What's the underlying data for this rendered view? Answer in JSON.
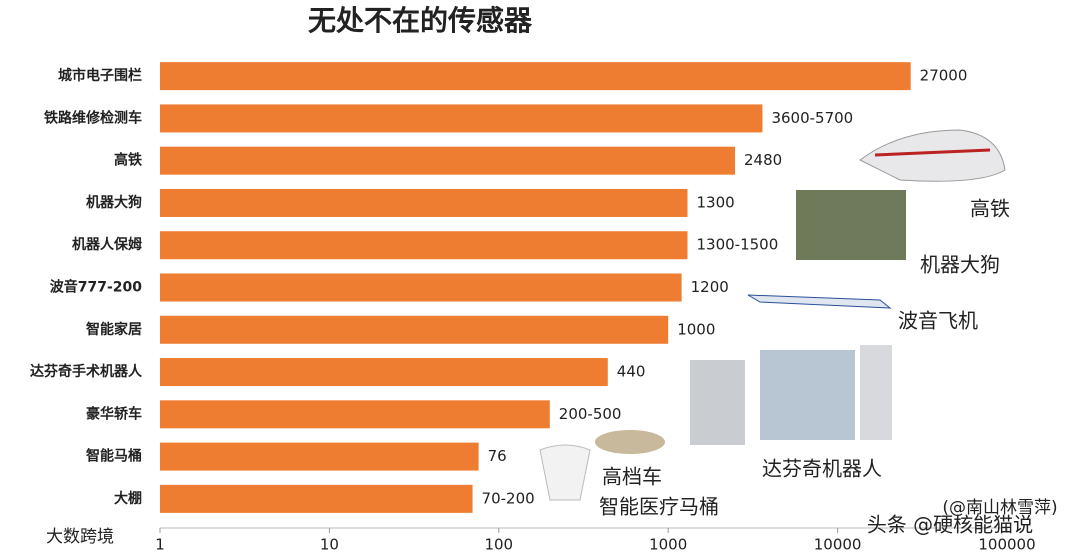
{
  "chart_data": {
    "type": "barh",
    "title": "无处不在的传感器",
    "categories": [
      "城市电子围栏",
      "铁路维修检测车",
      "高铁",
      "机器大狗",
      "机器人保姆",
      "波音777-200",
      "智能家居",
      "达芬奇手术机器人",
      "豪华轿车",
      "智能马桶",
      "大棚"
    ],
    "values": [
      27000,
      3600,
      2480,
      1300,
      1300,
      1200,
      1000,
      440,
      200,
      76,
      70
    ],
    "value_labels": [
      "27000",
      "3600-5700",
      "2480",
      "1300",
      "1300-1500",
      "1200",
      "1000",
      "440",
      "200-500",
      "76",
      "70-200"
    ],
    "color": "#ee7d31",
    "xscale": "log",
    "xlim": [
      1,
      100000
    ],
    "xticks": [
      1,
      10,
      100,
      1000,
      10000,
      100000
    ],
    "annotations": [
      "高铁",
      "机器大狗",
      "波音飞机",
      "达芬奇机器人",
      "高档车",
      "智能医疗马桶",
      "(@南山林雪萍)",
      "头条 @硬核能猫说",
      "大数跨境"
    ]
  }
}
